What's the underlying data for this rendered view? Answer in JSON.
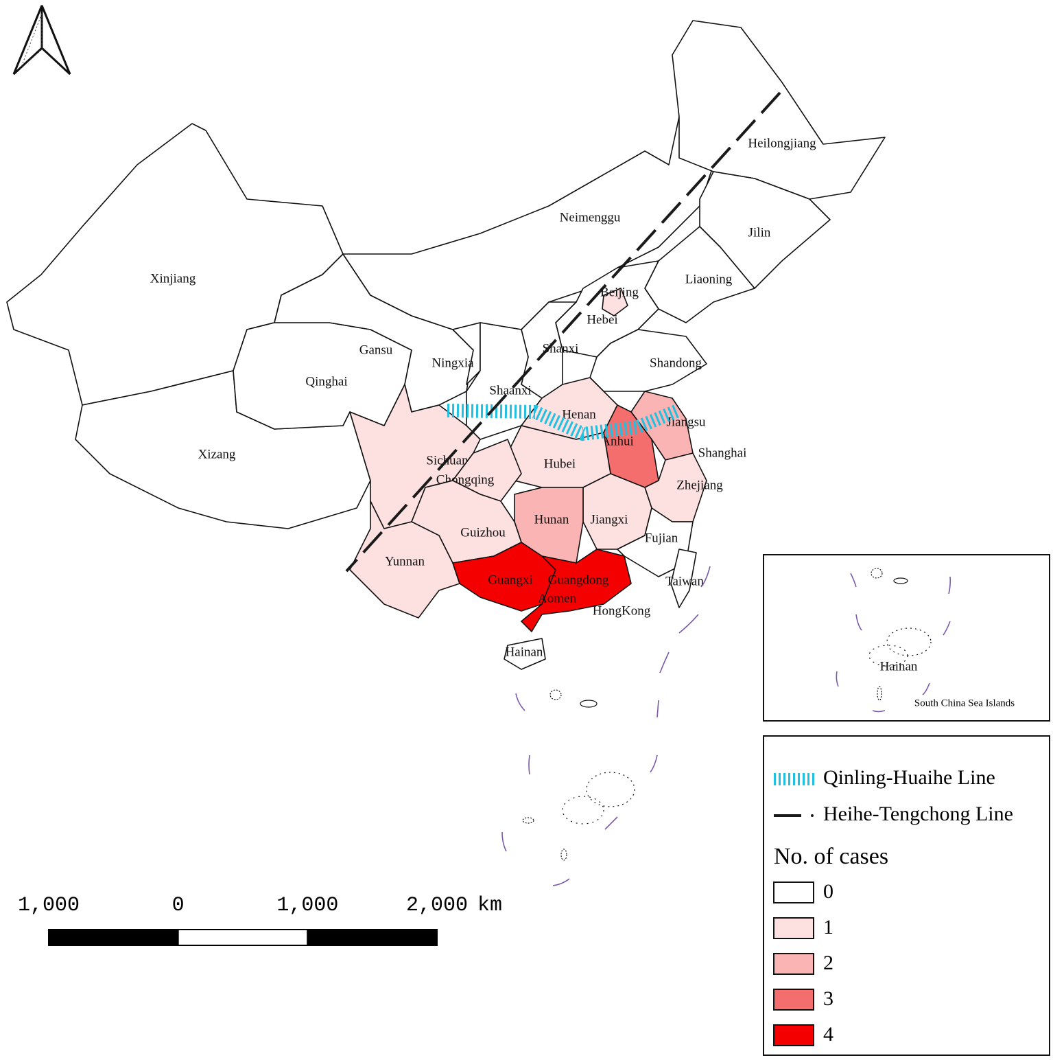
{
  "map": {
    "regions": [
      {
        "name": "Xinjiang",
        "cases": 0
      },
      {
        "name": "Xizang",
        "cases": 0
      },
      {
        "name": "Qinghai",
        "cases": 0
      },
      {
        "name": "Gansu",
        "cases": 0
      },
      {
        "name": "Neimenggu",
        "cases": 0
      },
      {
        "name": "Heilongjiang",
        "cases": 0
      },
      {
        "name": "Jilin",
        "cases": 0
      },
      {
        "name": "Liaoning",
        "cases": 0
      },
      {
        "name": "Hebei",
        "cases": 0
      },
      {
        "name": "Beijing",
        "cases": 1
      },
      {
        "name": "Shanxi",
        "cases": 0
      },
      {
        "name": "Shandong",
        "cases": 0
      },
      {
        "name": "Ningxia",
        "cases": 0
      },
      {
        "name": "Shaanxi",
        "cases": 0
      },
      {
        "name": "Henan",
        "cases": 1
      },
      {
        "name": "Jiangsu",
        "cases": 2
      },
      {
        "name": "Anhui",
        "cases": 3
      },
      {
        "name": "Hubei",
        "cases": 1
      },
      {
        "name": "Zhejiang",
        "cases": 1
      },
      {
        "name": "Jiangxi",
        "cases": 1
      },
      {
        "name": "Fujian",
        "cases": 0
      },
      {
        "name": "Hunan",
        "cases": 2
      },
      {
        "name": "Sichuan",
        "cases": 1
      },
      {
        "name": "Chongqing",
        "cases": 1
      },
      {
        "name": "Guizhou",
        "cases": 1
      },
      {
        "name": "Yunnan",
        "cases": 1
      },
      {
        "name": "Guangxi",
        "cases": 4
      },
      {
        "name": "Guangdong",
        "cases": 4
      },
      {
        "name": "Hainan",
        "cases": 0
      },
      {
        "name": "Taiwan",
        "cases": 0
      }
    ],
    "other_labels": [
      "Shanghai",
      "Aomen",
      "HongKong"
    ],
    "inset": {
      "title": "South China Sea Islands",
      "label": "Hainan"
    },
    "legend": {
      "lines": [
        {
          "label": "Qinling-Huaihe Line",
          "color": "#22c0e0"
        },
        {
          "label": "Heihe-Tengchong Line",
          "color": "#1a1a1a"
        }
      ],
      "title": "No. of cases",
      "classes": [
        {
          "value": 0,
          "color": "#ffffff"
        },
        {
          "value": 1,
          "color": "#fde0e0"
        },
        {
          "value": 2,
          "color": "#fbb4b4"
        },
        {
          "value": 3,
          "color": "#f46e6e"
        },
        {
          "value": 4,
          "color": "#f50000"
        }
      ]
    },
    "scale_bar": {
      "ticks": [
        {
          "value": -1000,
          "label": "1,000"
        },
        0,
        {
          "value": 1000,
          "label": "1,000"
        },
        {
          "value": 2000,
          "label": "2,000"
        }
      ],
      "unit": "km"
    }
  }
}
